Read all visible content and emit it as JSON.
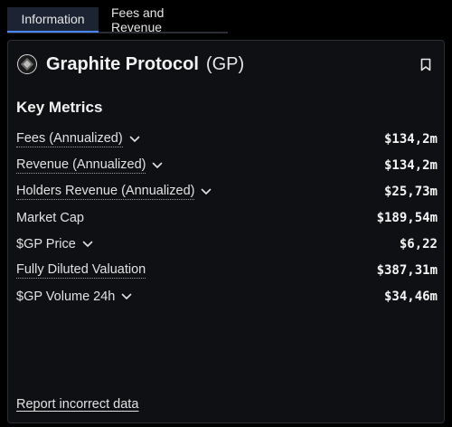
{
  "tabs": [
    {
      "label": "Information"
    },
    {
      "label": "Fees and Revenue"
    }
  ],
  "header": {
    "name": "Graphite Protocol",
    "ticker": "(GP)",
    "logo_icon": "graphite-logo-icon",
    "bookmark_icon": "bookmark-icon"
  },
  "section_title": "Key Metrics",
  "metrics": [
    {
      "label": "Fees (Annualized)",
      "value": "$134,2m",
      "dropdown": true,
      "dotted": true
    },
    {
      "label": "Revenue (Annualized)",
      "value": "$134,2m",
      "dropdown": true,
      "dotted": true
    },
    {
      "label": "Holders Revenue (Annualized)",
      "value": "$25,73m",
      "dropdown": true,
      "dotted": true
    },
    {
      "label": "Market Cap",
      "value": "$189,54m",
      "dropdown": false,
      "dotted": false
    },
    {
      "label": "$GP Price",
      "value": "$6,22",
      "dropdown": true,
      "dotted": false
    },
    {
      "label": "Fully Diluted Valuation",
      "value": "$387,31m",
      "dropdown": false,
      "dotted": true
    },
    {
      "label": "$GP Volume 24h",
      "value": "$34,46m",
      "dropdown": true,
      "dotted": false
    }
  ],
  "footer": {
    "report_link": "Report incorrect data"
  },
  "colors": {
    "accent": "#4a86ff",
    "card_bg": "#0f1013",
    "border": "#2b2e34"
  }
}
